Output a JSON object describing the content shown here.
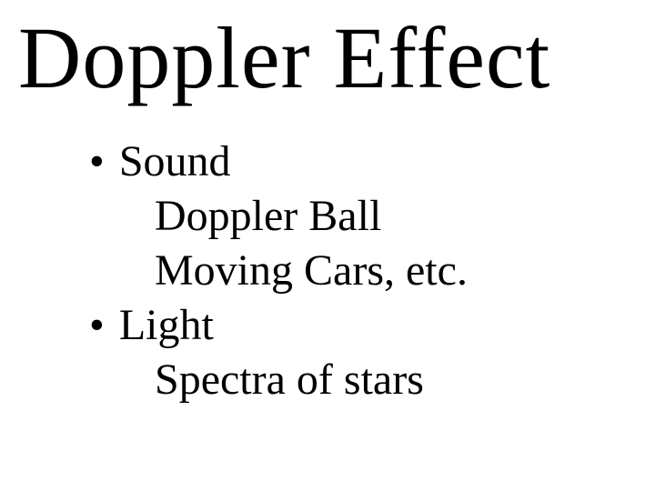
{
  "title": "Doppler Effect",
  "bullets": [
    {
      "marker": "•",
      "label": "Sound",
      "subitems": [
        "Doppler Ball",
        "Moving Cars, etc."
      ]
    },
    {
      "marker": "•",
      "label": "Light",
      "subitems": [
        "Spectra of stars"
      ]
    }
  ],
  "style": {
    "background_color": "#ffffff",
    "text_color": "#000000",
    "font_family": "Times New Roman, serif",
    "title_fontsize": 96,
    "body_fontsize": 48
  }
}
